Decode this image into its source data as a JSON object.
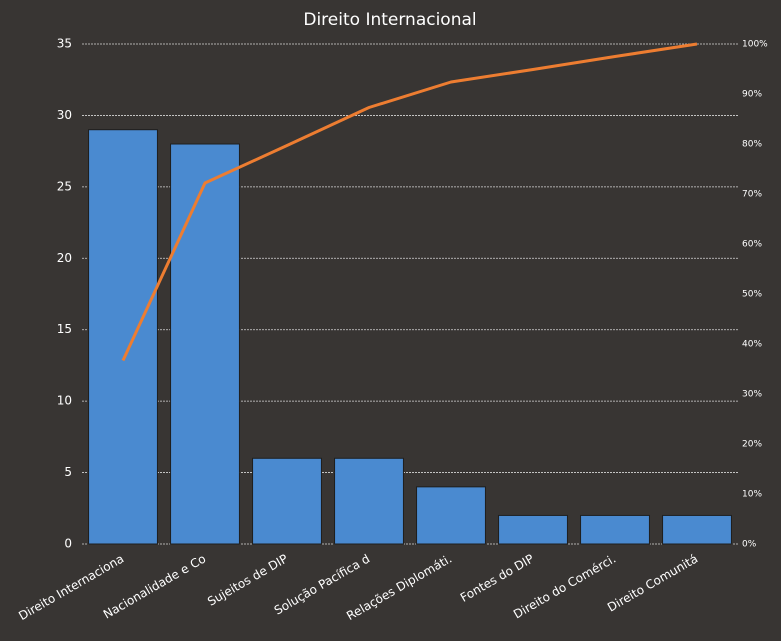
{
  "chart_data": {
    "type": "bar",
    "title": "Direito Internacional",
    "categories": [
      "Direito Internaciona",
      "Nacionalidade e Co",
      "Sujeitos de DIP",
      "Solução Pacífica d",
      "Relações Diplomáti.",
      "Fontes do DIP",
      "Direito do Comérci.",
      "Direito Comunitá"
    ],
    "series": [
      {
        "color": "#4a8ad0",
        "values": [
          29,
          28,
          6,
          6,
          4,
          2,
          2,
          2
        ]
      },
      {
        "type": "line",
        "axis": "y2",
        "color": "#ed7d31",
        "values": [
          36.7,
          72.2,
          79.7,
          87.3,
          92.4,
          94.9,
          97.5,
          100
        ]
      }
    ],
    "ylim": [
      0,
      35
    ],
    "yticks": [
      0,
      5,
      10,
      15,
      20,
      25,
      30,
      35
    ],
    "y2lim": [
      0,
      100
    ],
    "y2ticks": [
      {
        "value": 0,
        "label": "0%"
      },
      {
        "value": 10,
        "label": "10%"
      },
      {
        "value": 20,
        "label": "20%"
      },
      {
        "value": 30,
        "label": "30%"
      },
      {
        "value": 40,
        "label": "40%"
      },
      {
        "value": 50,
        "label": "50%"
      },
      {
        "value": 60,
        "label": "60%"
      },
      {
        "value": 70,
        "label": "70%"
      },
      {
        "value": 80,
        "label": "80%"
      },
      {
        "value": 90,
        "label": "90%"
      },
      {
        "value": 100,
        "label": "100%"
      }
    ],
    "grid": true
  }
}
